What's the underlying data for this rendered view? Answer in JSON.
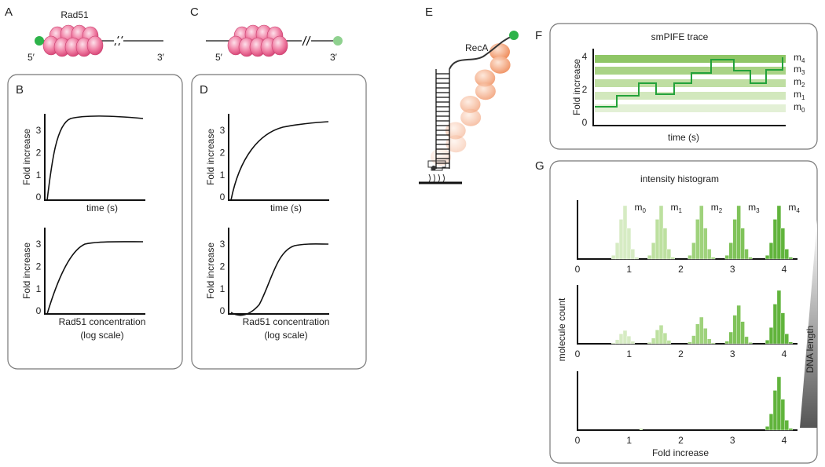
{
  "panels": {
    "A": {
      "label": "A",
      "protein": "Rad51",
      "end5": "5′",
      "end3": "3′"
    },
    "B": {
      "label": "B",
      "plots": [
        {
          "ylabel": "Fold increase",
          "yticks": [
            0,
            1,
            2,
            3
          ],
          "xlabel": [
            "time (s)"
          ]
        },
        {
          "ylabel": "Fold increase",
          "yticks": [
            0,
            1,
            2,
            3
          ],
          "xlabel": [
            "Rad51 concentration",
            "(log scale)"
          ]
        }
      ]
    },
    "C": {
      "label": "C",
      "end5": "5′",
      "end3": "3′"
    },
    "D": {
      "label": "D",
      "plots": [
        {
          "ylabel": "Fold increase",
          "yticks": [
            0,
            1,
            2,
            3
          ],
          "xlabel": [
            "time (s)"
          ]
        },
        {
          "ylabel": "Fold increase",
          "yticks": [
            0,
            1,
            2,
            3
          ],
          "xlabel": [
            "Rad51 concentration",
            "(log scale)"
          ]
        }
      ]
    },
    "E": {
      "label": "E",
      "protein": "RecA"
    },
    "F": {
      "label": "F",
      "title": "smPIFE trace",
      "ylabel": "Fold increase",
      "yticks": [
        0,
        2,
        4
      ],
      "xlabel": "time (s)",
      "levels": [
        {
          "base": "m",
          "sub": "0"
        },
        {
          "base": "m",
          "sub": "1"
        },
        {
          "base": "m",
          "sub": "2"
        },
        {
          "base": "m",
          "sub": "3"
        },
        {
          "base": "m",
          "sub": "4"
        }
      ]
    },
    "G": {
      "label": "G",
      "title": "intensity histogram",
      "ylabel": "molecule count",
      "xticks": [
        0,
        1,
        2,
        3,
        4
      ],
      "xlabel": "Fold increase",
      "gradient_label": "DNA length",
      "peaks": [
        {
          "base": "m",
          "sub": "0"
        },
        {
          "base": "m",
          "sub": "1"
        },
        {
          "base": "m",
          "sub": "2"
        },
        {
          "base": "m",
          "sub": "3"
        },
        {
          "base": "m",
          "sub": "4"
        }
      ]
    }
  }
}
